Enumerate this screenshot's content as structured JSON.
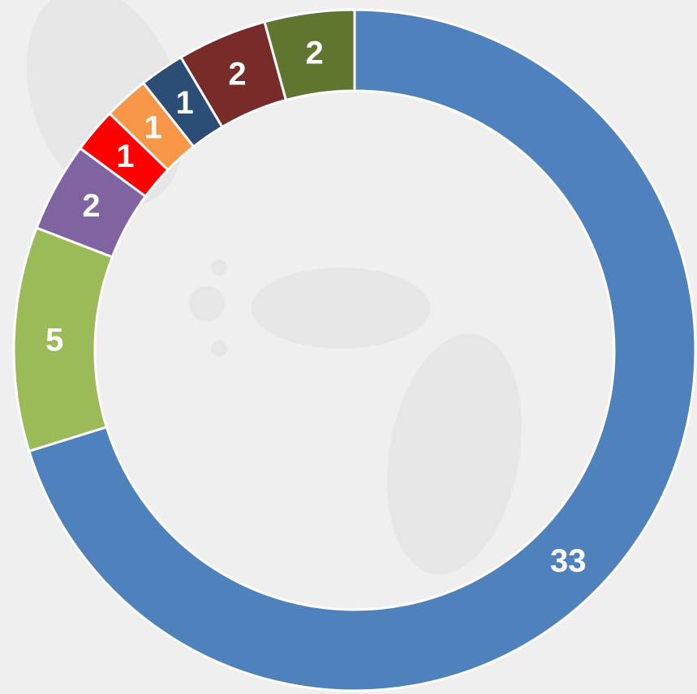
{
  "chart_data": {
    "type": "donut",
    "values": [
      33,
      5,
      2,
      1,
      1,
      1,
      2,
      2
    ],
    "colors": [
      "#4f81bd",
      "#9bbb59",
      "#8064a2",
      "#ff0000",
      "#f79646",
      "#2c4d75",
      "#772c2a",
      "#5f7530"
    ]
  }
}
